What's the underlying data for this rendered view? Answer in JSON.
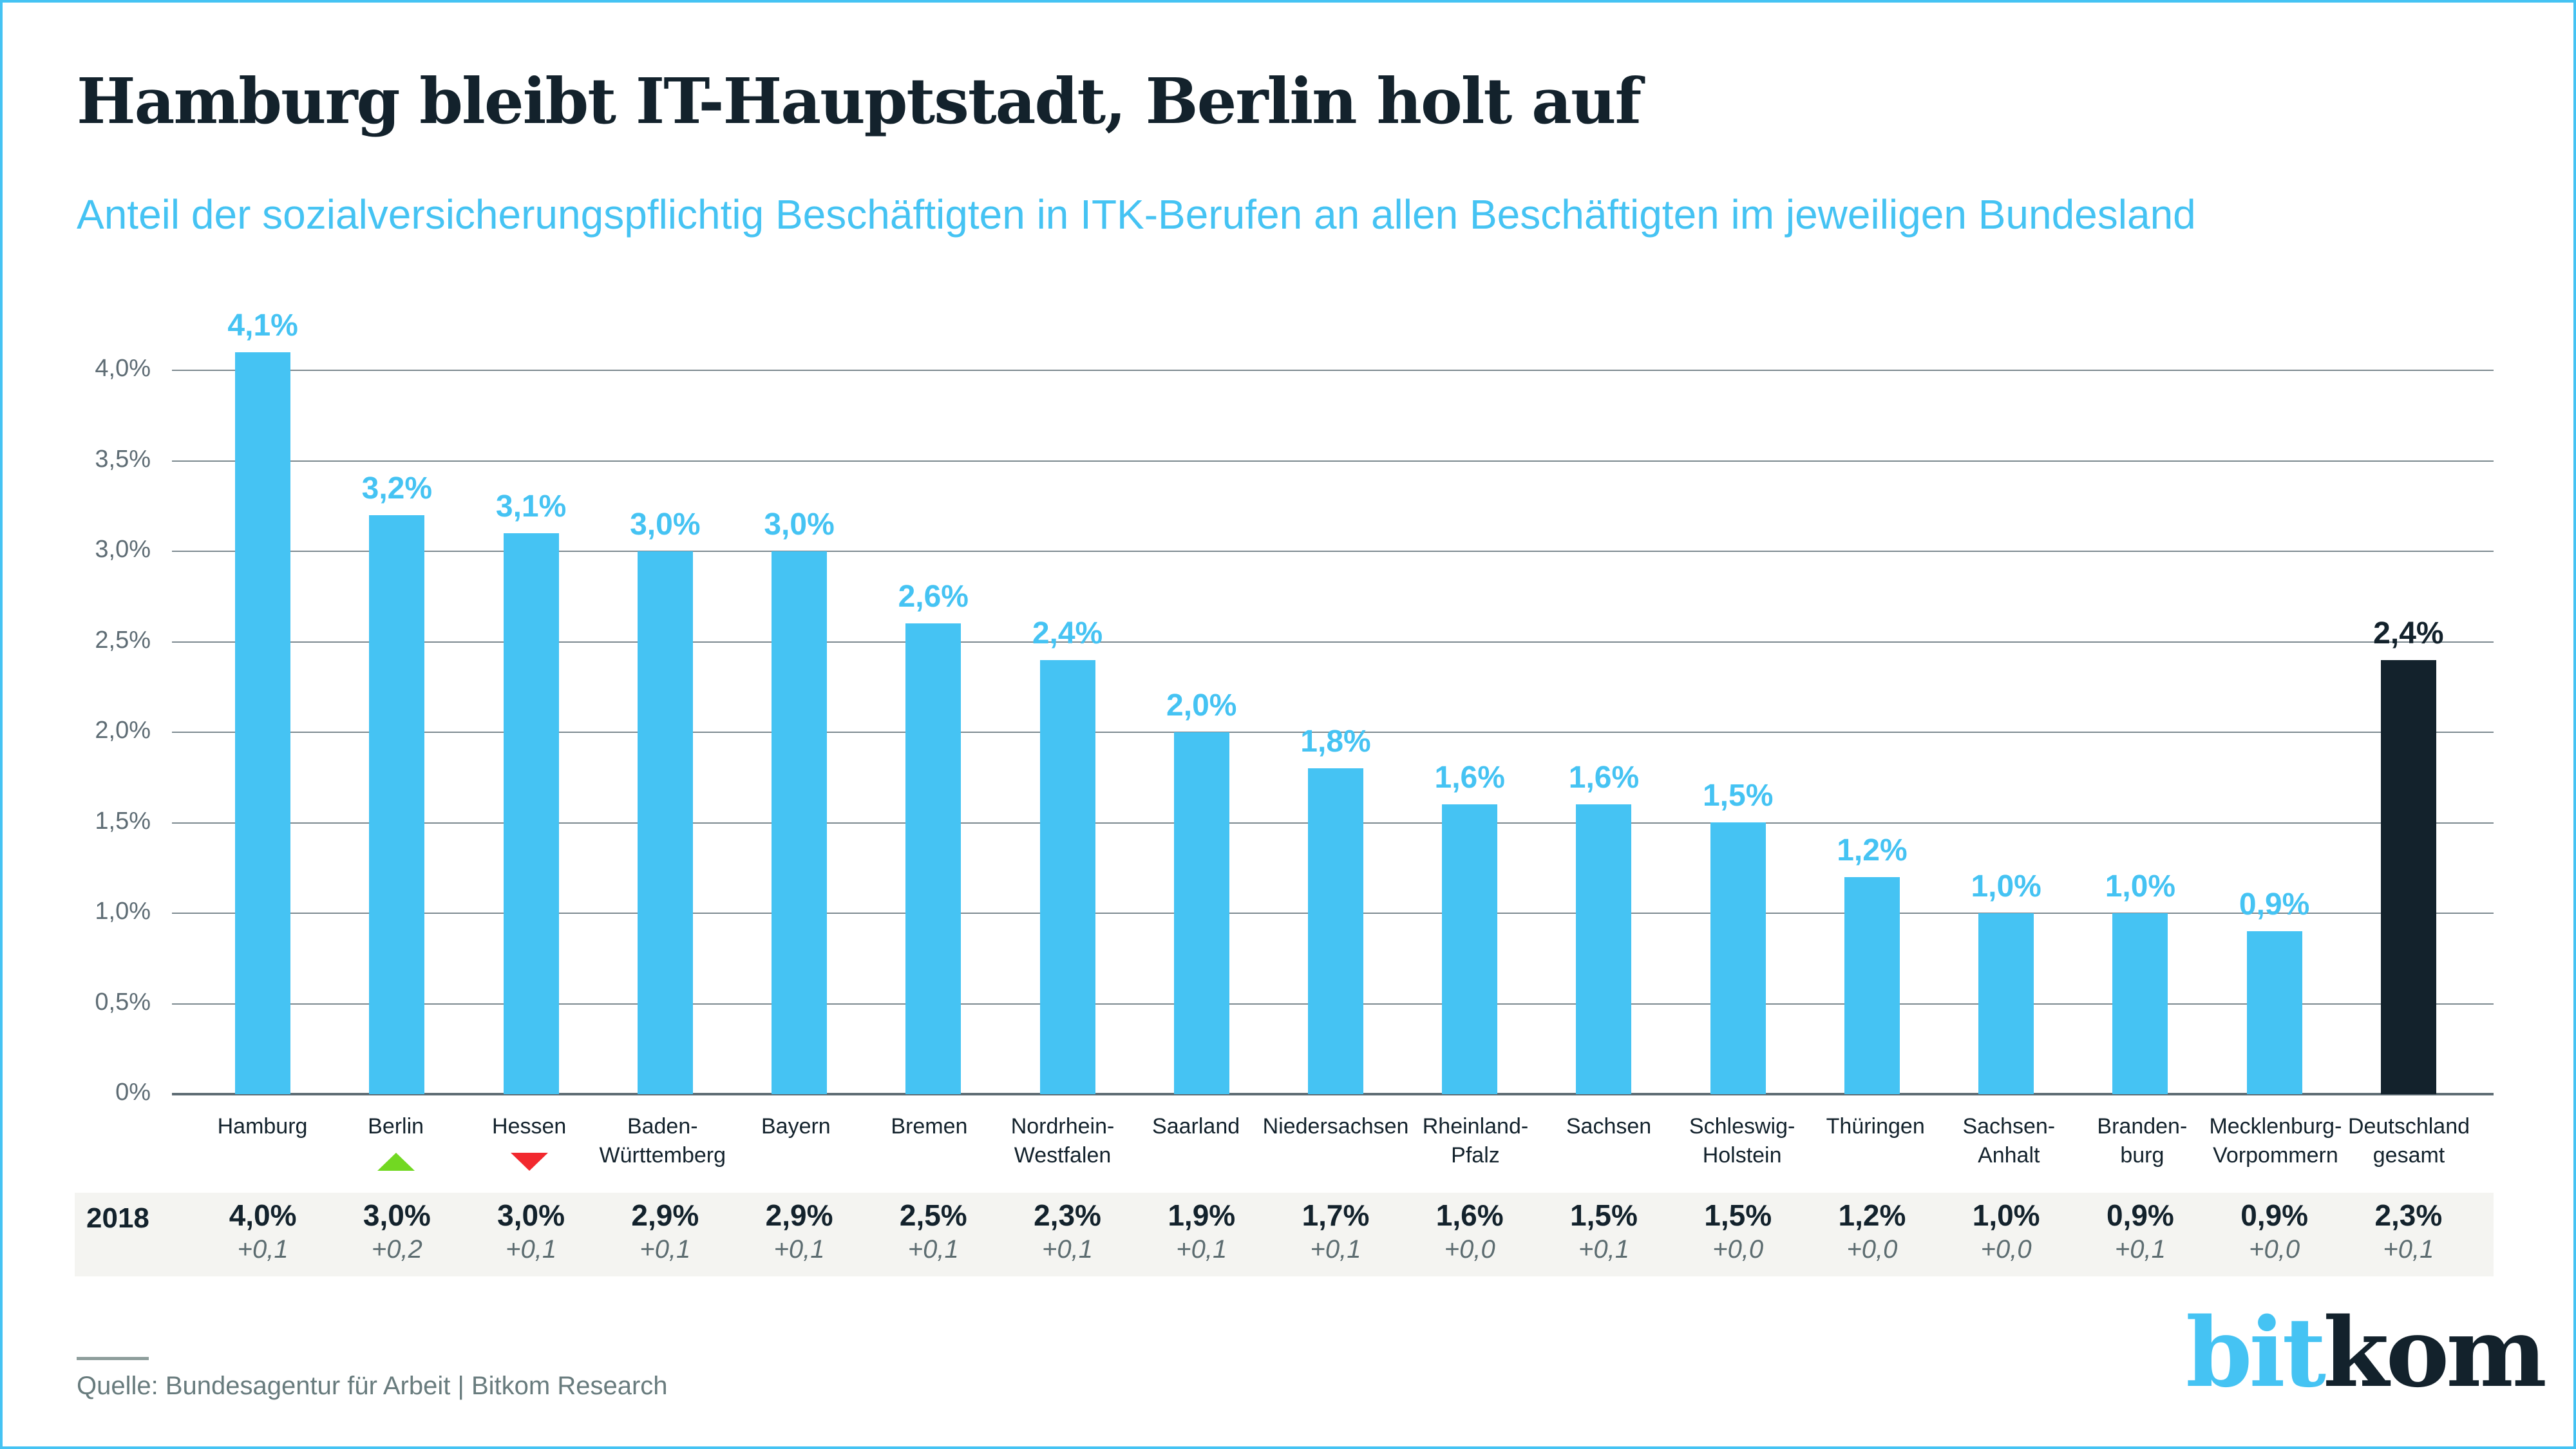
{
  "page": {
    "title": "Hamburg bleibt IT-Hauptstadt, Berlin holt auf",
    "subtitle": "Anteil der sozialversicherungspflichtig Beschäftigten in ITK-Berufen an allen Beschäftigten im jeweiligen Bundesland",
    "source": "Quelle: Bundesagentur für Arbeit | Bitkom Research",
    "logo": {
      "part1": "bit",
      "part2": "kom"
    }
  },
  "colors": {
    "accent_cyan": "#45C3F3",
    "dark_navy": "#13222C",
    "grid_gray": "#7C898F",
    "axis_gray": "#5E6C74",
    "band_background": "#F4F4F1",
    "delta_gray": "#5C6C70",
    "source_gray": "#687B7D",
    "trend_up_green": "#72D822",
    "trend_down_red": "#F2282E"
  },
  "chart_data": {
    "type": "bar",
    "title": "Hamburg bleibt IT-Hauptstadt, Berlin holt auf",
    "subtitle": "Anteil der sozialversicherungspflichtig Beschäftigten in ITK-Berufen an allen Beschäftigten im jeweiligen Bundesland",
    "unit": "%",
    "ylim": [
      0,
      4.0
    ],
    "grid": true,
    "legend": "none",
    "yticks": [
      {
        "label": "4,0%",
        "value": 4.0
      },
      {
        "label": "3,5%",
        "value": 3.5
      },
      {
        "label": "3,0%",
        "value": 3.0
      },
      {
        "label": "2,5%",
        "value": 2.5
      },
      {
        "label": "2,0%",
        "value": 2.0
      },
      {
        "label": "1,5%",
        "value": 1.5
      },
      {
        "label": "1,0%",
        "value": 1.0
      },
      {
        "label": "0,5%",
        "value": 0.5
      },
      {
        "label": "0%",
        "value": 0.0
      }
    ],
    "categories": [
      "Hamburg",
      "Berlin",
      "Hessen",
      "Baden-Württemberg",
      "Bayern",
      "Bremen",
      "Nordrhein-Westfalen",
      "Saarland",
      "Niedersachsen",
      "Rheinland-Pfalz",
      "Sachsen",
      "Schleswig-Holstein",
      "Thüringen",
      "Sachsen-Anhalt",
      "Brandenburg",
      "Mecklenburg-Vorpommern",
      "Deutschland gesamt"
    ],
    "values": [
      4.1,
      3.2,
      3.1,
      3.0,
      3.0,
      2.6,
      2.4,
      2.0,
      1.8,
      1.6,
      1.6,
      1.5,
      1.2,
      1.0,
      1.0,
      0.9,
      2.4
    ],
    "bars": [
      {
        "name": "Hamburg",
        "label_lines": [
          "Hamburg"
        ],
        "value": 4.1,
        "value_label": "4,1%",
        "highlight": false,
        "trend": null,
        "prev_value": "4,0%",
        "prev_delta": "+0,1"
      },
      {
        "name": "Berlin",
        "label_lines": [
          "Berlin"
        ],
        "value": 3.2,
        "value_label": "3,2%",
        "highlight": false,
        "trend": "up",
        "prev_value": "3,0%",
        "prev_delta": "+0,2"
      },
      {
        "name": "Hessen",
        "label_lines": [
          "Hessen"
        ],
        "value": 3.1,
        "value_label": "3,1%",
        "highlight": false,
        "trend": "down",
        "prev_value": "3,0%",
        "prev_delta": "+0,1"
      },
      {
        "name": "Baden-Württemberg",
        "label_lines": [
          "Baden-",
          "Württemberg"
        ],
        "value": 3.0,
        "value_label": "3,0%",
        "highlight": false,
        "trend": null,
        "prev_value": "2,9%",
        "prev_delta": "+0,1"
      },
      {
        "name": "Bayern",
        "label_lines": [
          "Bayern"
        ],
        "value": 3.0,
        "value_label": "3,0%",
        "highlight": false,
        "trend": null,
        "prev_value": "2,9%",
        "prev_delta": "+0,1"
      },
      {
        "name": "Bremen",
        "label_lines": [
          "Bremen"
        ],
        "value": 2.6,
        "value_label": "2,6%",
        "highlight": false,
        "trend": null,
        "prev_value": "2,5%",
        "prev_delta": "+0,1"
      },
      {
        "name": "Nordrhein-Westfalen",
        "label_lines": [
          "Nordrhein-",
          "Westfalen"
        ],
        "value": 2.4,
        "value_label": "2,4%",
        "highlight": false,
        "trend": null,
        "prev_value": "2,3%",
        "prev_delta": "+0,1"
      },
      {
        "name": "Saarland",
        "label_lines": [
          "Saarland"
        ],
        "value": 2.0,
        "value_label": "2,0%",
        "highlight": false,
        "trend": null,
        "prev_value": "1,9%",
        "prev_delta": "+0,1"
      },
      {
        "name": "Niedersachsen",
        "label_lines": [
          "Niedersachsen"
        ],
        "value": 1.8,
        "value_label": "1,8%",
        "highlight": false,
        "trend": null,
        "prev_value": "1,7%",
        "prev_delta": "+0,1"
      },
      {
        "name": "Rheinland-Pfalz",
        "label_lines": [
          "Rheinland-",
          "Pfalz"
        ],
        "value": 1.6,
        "value_label": "1,6%",
        "highlight": false,
        "trend": null,
        "prev_value": "1,6%",
        "prev_delta": "+0,0"
      },
      {
        "name": "Sachsen",
        "label_lines": [
          "Sachsen"
        ],
        "value": 1.6,
        "value_label": "1,6%",
        "highlight": false,
        "trend": null,
        "prev_value": "1,5%",
        "prev_delta": "+0,1"
      },
      {
        "name": "Schleswig-Holstein",
        "label_lines": [
          "Schleswig-",
          "Holstein"
        ],
        "value": 1.5,
        "value_label": "1,5%",
        "highlight": false,
        "trend": null,
        "prev_value": "1,5%",
        "prev_delta": "+0,0"
      },
      {
        "name": "Thüringen",
        "label_lines": [
          "Thüringen"
        ],
        "value": 1.2,
        "value_label": "1,2%",
        "highlight": false,
        "trend": null,
        "prev_value": "1,2%",
        "prev_delta": "+0,0"
      },
      {
        "name": "Sachsen-Anhalt",
        "label_lines": [
          "Sachsen-",
          "Anhalt"
        ],
        "value": 1.0,
        "value_label": "1,0%",
        "highlight": false,
        "trend": null,
        "prev_value": "1,0%",
        "prev_delta": "+0,0"
      },
      {
        "name": "Brandenburg",
        "label_lines": [
          "Branden-",
          "burg"
        ],
        "value": 1.0,
        "value_label": "1,0%",
        "highlight": false,
        "trend": null,
        "prev_value": "0,9%",
        "prev_delta": "+0,1"
      },
      {
        "name": "Mecklenburg-Vorpommern",
        "label_lines": [
          "Mecklenburg-",
          "Vorpommern"
        ],
        "value": 0.9,
        "value_label": "0,9%",
        "highlight": false,
        "trend": null,
        "prev_value": "0,9%",
        "prev_delta": "+0,0"
      },
      {
        "name": "Deutschland gesamt",
        "label_lines": [
          "Deutschland",
          "gesamt"
        ],
        "value": 2.4,
        "value_label": "2,4%",
        "highlight": true,
        "trend": null,
        "prev_value": "2,3%",
        "prev_delta": "+0,1"
      }
    ],
    "comparison_row": {
      "label": "2018"
    }
  }
}
